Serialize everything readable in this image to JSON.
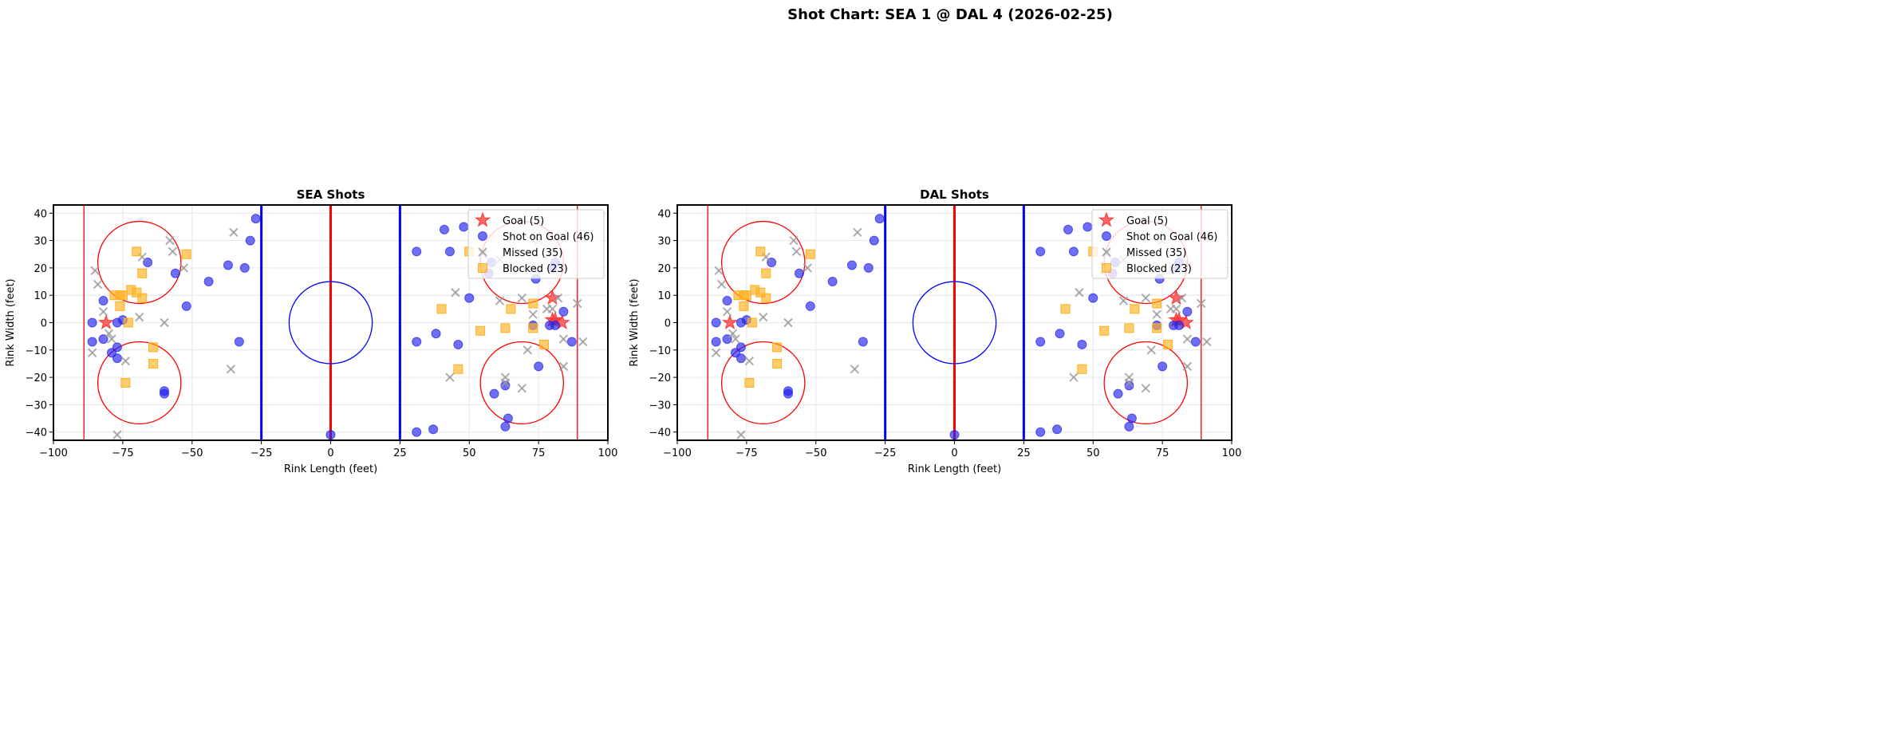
{
  "chart_data": {
    "title": "Shot Chart: SEA 1 @ DAL 4 (2026-02-25)",
    "colors": {
      "goal": "#ff3333",
      "shot": "#2222ee",
      "missed": "#999999",
      "blocked": "#ffb020",
      "blue_line": "#0000ff",
      "red_line": "#ff0000"
    },
    "panels": [
      {
        "type": "scatter",
        "title": "SEA Shots",
        "xlabel": "Rink Length (feet)",
        "ylabel": "Rink Width (feet)",
        "xlim": [
          -100,
          100
        ],
        "ylim": [
          -43,
          43
        ],
        "xticks": [
          -100,
          -75,
          -50,
          -25,
          0,
          25,
          50,
          75,
          100
        ],
        "yticks": [
          -40,
          -30,
          -20,
          -10,
          0,
          10,
          20,
          30,
          40
        ],
        "grid": true,
        "legend": "top-right"
      },
      {
        "type": "scatter",
        "title": "DAL Shots",
        "xlabel": "Rink Length (feet)",
        "ylabel": "Rink Width (feet)",
        "xlim": [
          -100,
          100
        ],
        "ylim": [
          -43,
          43
        ],
        "xticks": [
          -100,
          -75,
          -50,
          -25,
          0,
          25,
          50,
          75,
          100
        ],
        "yticks": [
          -40,
          -30,
          -20,
          -10,
          0,
          10,
          20,
          30,
          40
        ],
        "grid": true,
        "legend": "top-right"
      }
    ],
    "series": [
      {
        "key": "goal",
        "name": "Goal (5)",
        "marker": "star",
        "points": [
          [
            -81,
            0
          ],
          [
            80,
            9
          ],
          [
            80,
            1
          ],
          [
            81,
            1
          ],
          [
            83.5,
            0
          ]
        ]
      },
      {
        "key": "shot",
        "name": "Shot on Goal (46)",
        "marker": "circle",
        "points": [
          [
            -86,
            0
          ],
          [
            -86,
            -7
          ],
          [
            -82,
            8
          ],
          [
            -82,
            -6
          ],
          [
            -79,
            -11
          ],
          [
            -77,
            -9
          ],
          [
            -77,
            -13
          ],
          [
            -77,
            0
          ],
          [
            -75,
            1
          ],
          [
            -66,
            22
          ],
          [
            -56,
            18
          ],
          [
            -52,
            6
          ],
          [
            -60,
            -25
          ],
          [
            -60,
            -26
          ],
          [
            -44,
            15
          ],
          [
            -37,
            21
          ],
          [
            -31,
            20
          ],
          [
            -29,
            30
          ],
          [
            -27,
            38
          ],
          [
            -33,
            -7
          ],
          [
            0,
            -41
          ],
          [
            31,
            26
          ],
          [
            31,
            -7
          ],
          [
            31,
            -40
          ],
          [
            41,
            34
          ],
          [
            43,
            26
          ],
          [
            48,
            35
          ],
          [
            38,
            -4
          ],
          [
            46,
            -8
          ],
          [
            37,
            -39
          ],
          [
            50,
            9
          ],
          [
            58,
            22
          ],
          [
            59,
            -26
          ],
          [
            63,
            -23
          ],
          [
            63,
            -38
          ],
          [
            64,
            -35
          ],
          [
            74,
            16
          ],
          [
            73,
            -1
          ],
          [
            75,
            -16
          ],
          [
            79,
            -1
          ],
          [
            81,
            -1
          ],
          [
            80,
            20
          ],
          [
            84,
            4
          ],
          [
            87,
            -7
          ],
          [
            81,
            22
          ],
          [
            57,
            18
          ]
        ]
      },
      {
        "key": "missed",
        "name": "Missed (35)",
        "marker": "x",
        "points": [
          [
            -85,
            19
          ],
          [
            -84,
            14
          ],
          [
            -82,
            4
          ],
          [
            -86,
            -11
          ],
          [
            -79,
            -6
          ],
          [
            -74,
            -14
          ],
          [
            -77,
            -41
          ],
          [
            -68,
            24
          ],
          [
            -69,
            2
          ],
          [
            -58,
            30
          ],
          [
            -57,
            26
          ],
          [
            -53,
            20
          ],
          [
            -60,
            0
          ],
          [
            -35,
            33
          ],
          [
            -36,
            -17
          ],
          [
            45,
            11
          ],
          [
            43,
            -20
          ],
          [
            61,
            8
          ],
          [
            63,
            -20
          ],
          [
            69,
            9
          ],
          [
            69,
            -24
          ],
          [
            71,
            -10
          ],
          [
            73,
            3
          ],
          [
            78,
            5
          ],
          [
            82,
            9
          ],
          [
            84,
            -6
          ],
          [
            84,
            -16
          ],
          [
            89,
            7
          ],
          [
            91,
            -7
          ],
          [
            61,
            23
          ],
          [
            80,
            5
          ],
          [
            63,
            -22
          ],
          [
            -80,
            -4
          ],
          [
            55,
            25
          ],
          [
            75,
            30
          ]
        ]
      },
      {
        "key": "blocked",
        "name": "Blocked (23)",
        "marker": "square",
        "points": [
          [
            -70,
            26
          ],
          [
            -68,
            18
          ],
          [
            -52,
            25
          ],
          [
            -78,
            10
          ],
          [
            -76,
            10
          ],
          [
            -75,
            10
          ],
          [
            -72,
            12
          ],
          [
            -70,
            11
          ],
          [
            -68,
            9
          ],
          [
            -76,
            6
          ],
          [
            -73,
            0
          ],
          [
            -64,
            -9
          ],
          [
            -64,
            -15
          ],
          [
            -74,
            -22
          ],
          [
            40,
            5
          ],
          [
            50,
            26
          ],
          [
            54,
            -3
          ],
          [
            63,
            -2
          ],
          [
            65,
            5
          ],
          [
            73,
            7
          ],
          [
            73,
            -2
          ],
          [
            77,
            -8
          ],
          [
            46,
            -17
          ]
        ]
      }
    ]
  }
}
